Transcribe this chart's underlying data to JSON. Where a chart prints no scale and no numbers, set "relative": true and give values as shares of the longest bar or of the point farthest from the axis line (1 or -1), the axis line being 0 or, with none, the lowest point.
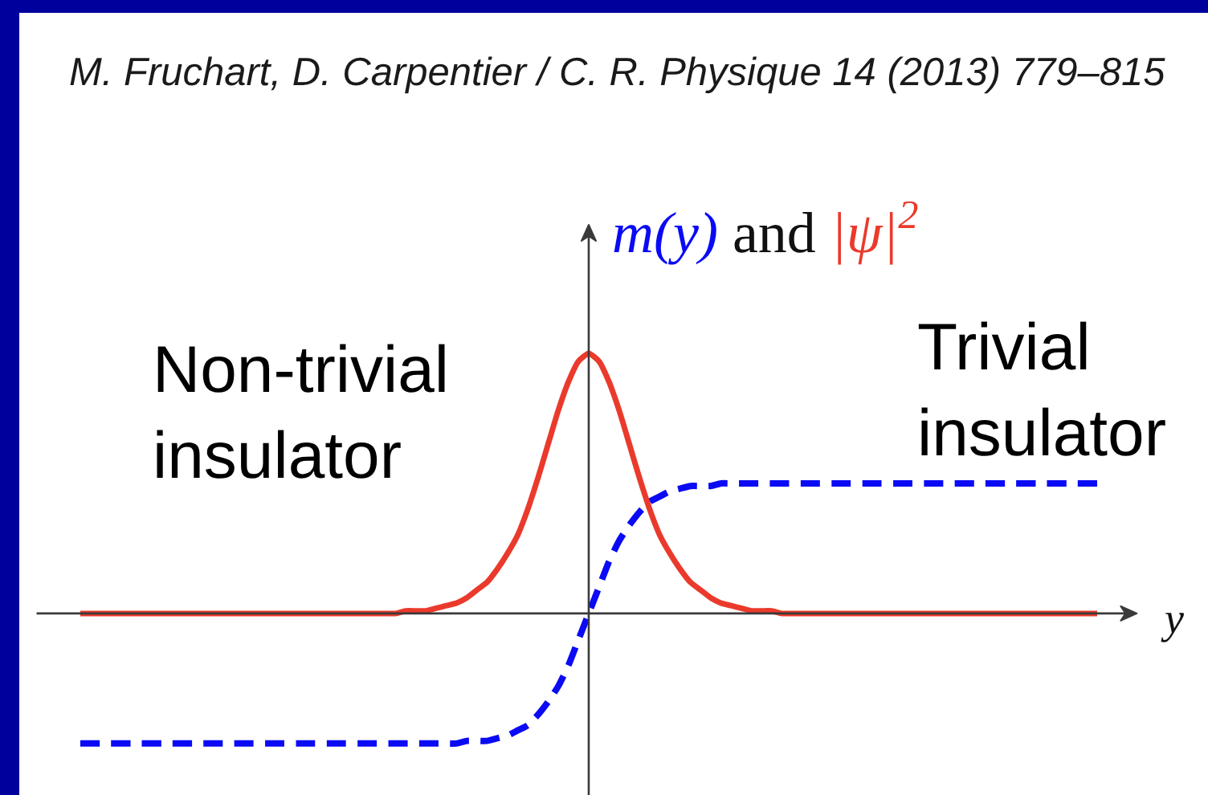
{
  "chart_data": {
    "type": "line",
    "relative": true,
    "xlabel": "y",
    "ylabel": "m(y) and |ψ|$^{2}$",
    "annotations": [
      "M. Fruchart, D. Carpentier / C. R. Physique 14 (2013) 779–815",
      "Non-trivial insulator",
      "Trivial insulator"
    ],
    "categories": [
      null,
      null,
      null,
      null,
      null,
      null,
      null,
      null,
      null,
      null,
      null,
      null,
      null,
      null,
      null,
      null,
      null,
      null,
      null,
      null,
      null,
      null,
      null,
      null,
      null,
      null,
      null,
      null,
      null,
      null,
      null,
      null,
      null,
      null,
      null,
      null,
      null,
      null,
      null,
      null,
      null,
      null,
      null,
      null,
      null,
      null,
      null,
      null,
      null,
      null,
      null,
      null,
      null,
      null,
      null,
      null,
      null,
      null,
      null,
      null,
      null,
      null,
      null,
      null,
      null,
      null,
      null,
      null,
      null,
      null,
      null,
      null,
      null,
      null,
      null,
      null,
      null,
      null,
      null,
      null,
      null,
      null,
      null,
      null,
      null,
      null,
      null,
      null,
      null,
      null,
      null,
      null,
      null,
      null,
      null,
      null,
      null,
      null,
      null,
      null,
      null
    ],
    "series": [
      {
        "color": "#0a0af5",
        "line_style": "dashed",
        "values": [
          -0.5,
          -0.5,
          -0.5,
          -0.5,
          -0.5,
          -0.5,
          -0.5,
          -0.5,
          -0.5,
          -0.5,
          -0.5,
          -0.5,
          -0.5,
          -0.5,
          -0.5,
          -0.5,
          -0.5,
          -0.5,
          -0.5,
          -0.5,
          -0.5,
          -0.5,
          -0.5,
          -0.5,
          -0.5,
          -0.5,
          -0.5,
          -0.5,
          -0.5,
          -0.5,
          -0.5,
          -0.5,
          -0.5,
          -0.5,
          -0.5,
          -0.5,
          -0.5,
          -0.5,
          -0.49,
          -0.49,
          -0.49,
          -0.48,
          -0.47,
          -0.45,
          -0.43,
          -0.39,
          -0.34,
          -0.28,
          -0.2,
          -0.1,
          0,
          0.1,
          0.2,
          0.28,
          0.34,
          0.39,
          0.43,
          0.45,
          0.47,
          0.48,
          0.49,
          0.49,
          0.49,
          0.5,
          0.5,
          0.5,
          0.5,
          0.5,
          0.5,
          0.5,
          0.5,
          0.5,
          0.5,
          0.5,
          0.5,
          0.5,
          0.5,
          0.5,
          0.5,
          0.5,
          0.5,
          0.5,
          0.5,
          0.5,
          0.5,
          0.5,
          0.5,
          0.5,
          0.5,
          0.5,
          0.5,
          0.5,
          0.5,
          0.5,
          0.5,
          0.5,
          0.5,
          0.5,
          0.5,
          0.5,
          0.5
        ]
      },
      {
        "color": "#ea3a2c",
        "line_style": "solid",
        "values": [
          0,
          0,
          0,
          0,
          0,
          0,
          0,
          0,
          0,
          0,
          0,
          0,
          0,
          0,
          0,
          0,
          0,
          0,
          0,
          0,
          0,
          0,
          0,
          0,
          0,
          0,
          0,
          0,
          0,
          0,
          0,
          0,
          0.01,
          0.01,
          0.01,
          0.02,
          0.03,
          0.04,
          0.06,
          0.09,
          0.12,
          0.17,
          0.23,
          0.3,
          0.4,
          0.52,
          0.65,
          0.78,
          0.89,
          0.97,
          1,
          0.97,
          0.89,
          0.78,
          0.65,
          0.52,
          0.4,
          0.3,
          0.23,
          0.17,
          0.12,
          0.09,
          0.06,
          0.04,
          0.03,
          0.02,
          0.01,
          0.01,
          0.01,
          0,
          0,
          0,
          0,
          0,
          0,
          0,
          0,
          0,
          0,
          0,
          0,
          0,
          0,
          0,
          0,
          0,
          0,
          0,
          0,
          0,
          0,
          0,
          0,
          0,
          0,
          0,
          0,
          0,
          0,
          0,
          0
        ]
      }
    ]
  }
}
